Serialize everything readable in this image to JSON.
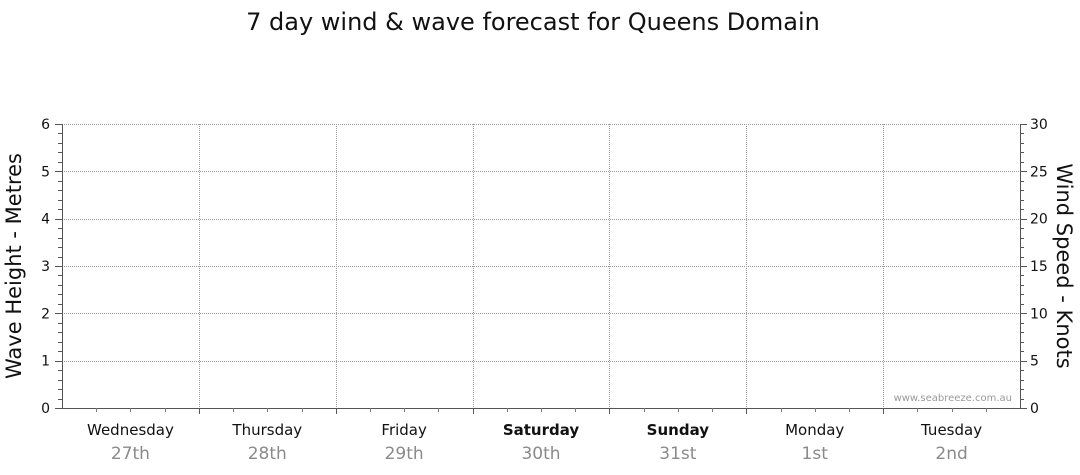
{
  "chart_data": {
    "type": "line",
    "title": "7 day wind & wave forecast for Queens Domain",
    "y_left": {
      "label": "Wave Height - Metres",
      "min": 0,
      "max": 6,
      "ticks": [
        0,
        1,
        2,
        3,
        4,
        5,
        6
      ]
    },
    "y_right": {
      "label": "Wind Speed - Knots",
      "min": 0,
      "max": 30,
      "ticks": [
        0,
        5,
        10,
        15,
        20,
        25,
        30
      ]
    },
    "days": [
      {
        "name": "Wednesday",
        "date": "27th",
        "weekend": false
      },
      {
        "name": "Thursday",
        "date": "28th",
        "weekend": false
      },
      {
        "name": "Friday",
        "date": "29th",
        "weekend": false
      },
      {
        "name": "Saturday",
        "date": "30th",
        "weekend": true
      },
      {
        "name": "Sunday",
        "date": "31st",
        "weekend": true
      },
      {
        "name": "Monday",
        "date": "1st",
        "weekend": false
      },
      {
        "name": "Tuesday",
        "date": "2nd",
        "weekend": false
      }
    ],
    "series": [],
    "grid": true,
    "watermark": "www.seabreeze.com.au"
  }
}
